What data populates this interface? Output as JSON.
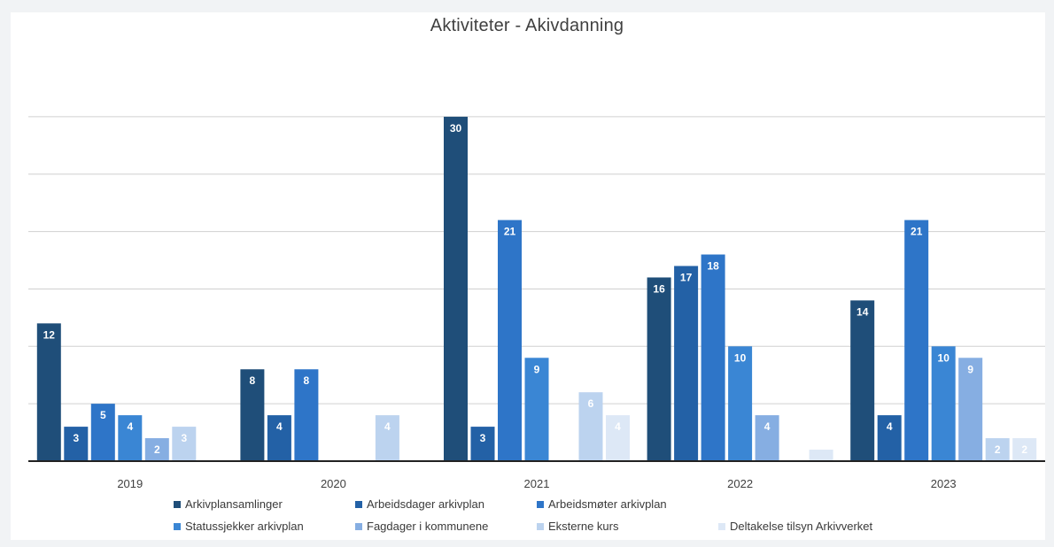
{
  "chart_data": {
    "type": "bar",
    "title": "Aktiviteter - Akivdanning",
    "xlabel": "",
    "ylabel": "",
    "ylim": [
      0,
      34
    ],
    "grid": true,
    "legend_position": "bottom",
    "categories": [
      "2019",
      "2020",
      "2021",
      "2022",
      "2023"
    ],
    "series": [
      {
        "name": "Arkivplansamlinger",
        "color": "#1f4e79",
        "values": [
          12,
          8,
          30,
          16,
          14
        ],
        "labels": [
          "12",
          "8",
          "30",
          "16",
          "14"
        ]
      },
      {
        "name": "Arbeidsdager arkivplan",
        "color": "#2361a6",
        "values": [
          3,
          4,
          3,
          17,
          4
        ],
        "labels": [
          "3",
          "4",
          "3",
          "17",
          "4"
        ]
      },
      {
        "name": "Arbeidsmøter arkivplan",
        "color": "#2e75c8",
        "values": [
          5,
          8,
          21,
          18,
          21
        ],
        "labels": [
          "5",
          "8",
          "21",
          "18",
          "21"
        ]
      },
      {
        "name": "Statussjekker arkivplan",
        "color": "#3a86d4",
        "values": [
          4,
          0,
          9,
          10,
          10
        ],
        "labels": [
          "4",
          "",
          "9",
          "10",
          "10"
        ]
      },
      {
        "name": "Fagdager i kommunene",
        "color": "#86aee2",
        "values": [
          2,
          0,
          0,
          4,
          9
        ],
        "labels": [
          "2",
          "",
          "",
          "4",
          "9"
        ]
      },
      {
        "name": "Eksterne kurs",
        "color": "#bcd3ef",
        "values": [
          3,
          4,
          6,
          0,
          2
        ],
        "labels": [
          "3",
          "4",
          "6",
          "",
          "2"
        ]
      },
      {
        "name": "Deltakelse tilsyn Arkivverket",
        "color": "#dde8f6",
        "values": [
          0,
          0,
          4,
          1,
          2
        ],
        "labels": [
          "",
          "",
          "4",
          "",
          "2"
        ]
      }
    ]
  }
}
